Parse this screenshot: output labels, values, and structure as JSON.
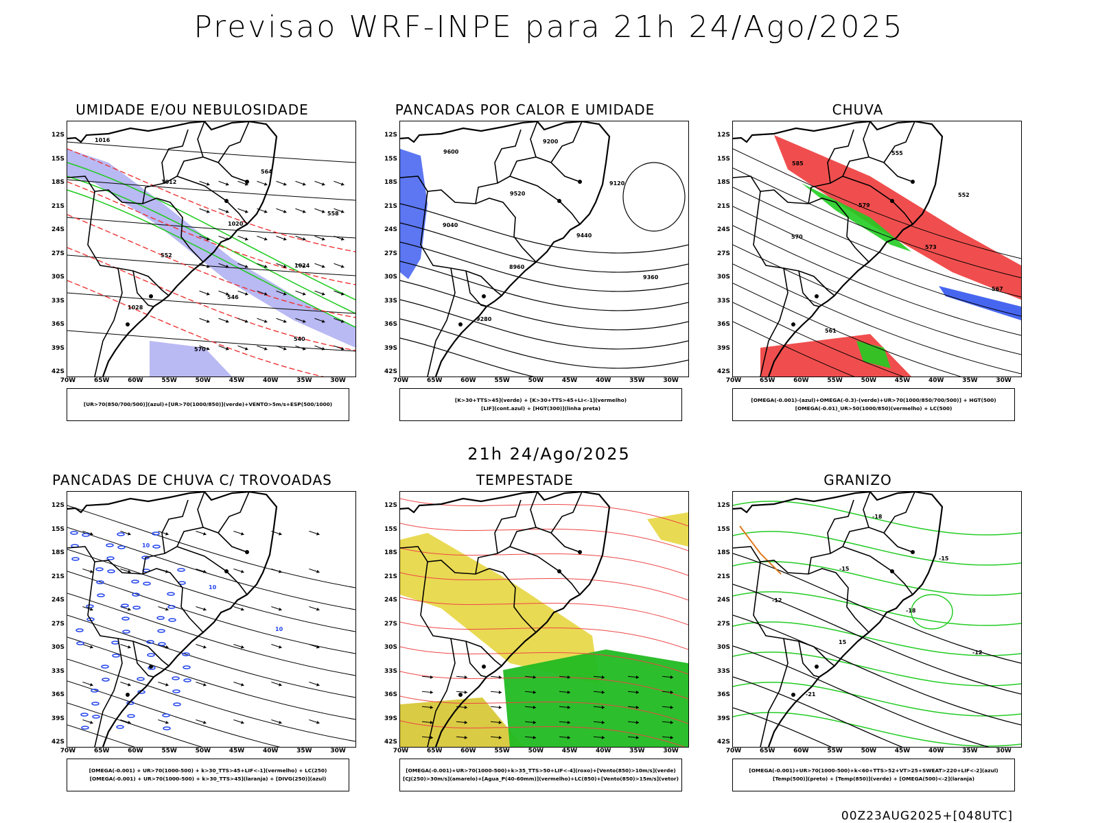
{
  "title": "Previsao WRF-INPE  para 21h 24/Ago/2025",
  "subtitle": "21h 24/Ago/2025",
  "footer": "00Z23AUG2025+[048UTC]",
  "axes": {
    "lat": [
      "12S",
      "15S",
      "18S",
      "21S",
      "24S",
      "27S",
      "30S",
      "33S",
      "36S",
      "39S",
      "42S"
    ],
    "lon": [
      "70W",
      "65W",
      "60W",
      "55W",
      "50W",
      "45W",
      "40W",
      "35W",
      "30W"
    ]
  },
  "panels": [
    {
      "title": "UMIDADE E/OU NEBULOSIDADE",
      "legend": [
        "[UR>70(850/700/500)](azul)+[UR>70(1000/850)](verde)+VENTO>5m/s+ESP(500/1000)"
      ],
      "labels": [
        "1016",
        "1012",
        "1020",
        "1024",
        "1028",
        "570",
        "564",
        "558",
        "552",
        "546",
        "540"
      ]
    },
    {
      "title": "PANCADAS POR CALOR E UMIDADE",
      "legend": [
        "[K>30+TTS>45](verde) + [K>30+TTS>45+LI<-1](vermelho)",
        "[LIF](cont.azul) + [HGT(300)](linha preta)"
      ],
      "labels": [
        "9600",
        "9520",
        "9440",
        "9360",
        "9280",
        "9200",
        "9120",
        "9040",
        "8960"
      ]
    },
    {
      "title": "CHUVA",
      "legend": [
        "[OMEGA(-0.001)-(azul)+OMEGA(-0.3)-(verde)+UR>70(1000/850/700/500)] + HGT(500)",
        "[OMEGA(-0.01)_UR>50(1000/850)(vermelho) + LC(500)"
      ],
      "labels": [
        "585",
        "579",
        "573",
        "567",
        "561",
        "555",
        "552",
        "570"
      ]
    },
    {
      "title": "PANCADAS DE CHUVA C/ TROVOADAS",
      "legend": [
        "[OMEGA(-0.001) + UR>70(1000-500) + k>30_TTS>45+LIF<-1](vermelho) + LC(250)",
        "[OMEGA(-0.001) + UR>70(1000-500) + k>30_TTS>45](laranja) + [DIVG(250)](azul)"
      ],
      "labels": [
        "10",
        "10",
        "10"
      ]
    },
    {
      "title": "TEMPESTADE",
      "legend": [
        "[OMEGA(-0.001)+UR>70(1000-500)+k>35_TTS>50+LIF<-4](roxo)+[Vento(850)>10m/s](verde)",
        "[CJ(250)>30m/s](amarelo)+[Agua_P(40-60mm)](vermelho)+LC(850)+[Vento(850)>15m/s](vetor)"
      ],
      "labels": []
    },
    {
      "title": "GRANIZO",
      "legend": [
        "[OMEGA(-0.001)+UR>70(1000-500)+k<60+TTS>52+VT>25+SWEAT>220+LIF<-2](azul)",
        "[Temp(500)](preto) + [Temp(850)](verde) + [OMEGA(500)<-2](laranja)"
      ],
      "labels": [
        "-15",
        "-18",
        "-12",
        "-21",
        "-18",
        "-15",
        "-12",
        "15"
      ]
    }
  ]
}
